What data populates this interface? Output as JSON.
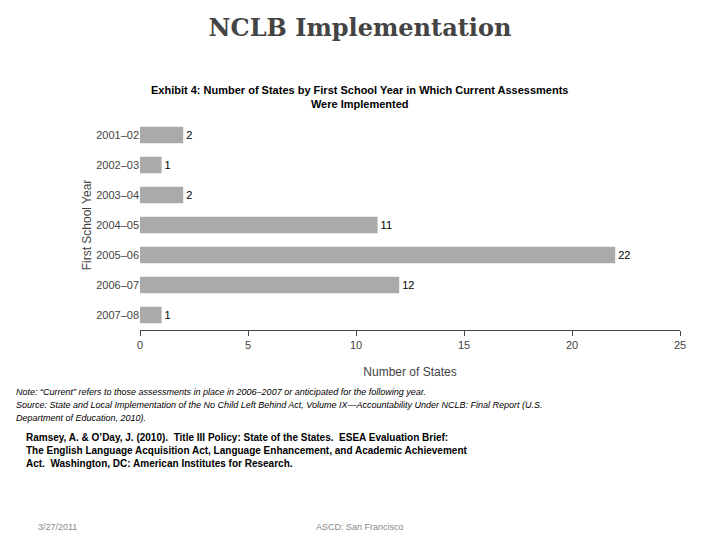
{
  "chart_data": {
    "type": "bar",
    "orientation": "horizontal",
    "title": "NCLB Implementation",
    "subtitle": "Exhibit 4: Number of States by First School Year in Which Current Assessments\nWere Implemented",
    "categories": [
      "2007–08",
      "2006–07",
      "2005–06",
      "2004–05",
      "2003–04",
      "2002–03",
      "2001–02"
    ],
    "values": [
      1,
      12,
      22,
      11,
      2,
      1,
      2
    ],
    "color": "#AAAAAA",
    "xlabel": "Number of States",
    "ylabel": "First School Year",
    "xlim": [
      0,
      25
    ],
    "xticks": [
      0,
      5,
      10,
      15,
      20,
      25
    ],
    "grid": false,
    "data_labels": true,
    "annotations": [
      "Note: “Current” refers to those assessments in place in 2006–2007 or anticipated for the following year.",
      "Source: State and Local Implementation of the No Child Left Behind Act, Volume IX—Accountability Under NCLB: Final Report (U.S.",
      "Department of Education, 2010).",
      "Ramsey, A. & O’Day, J. (2010).  Title III Policy: State of the States.  ESEA Evaluation Brief:\nThe English Language Acquisition Act, Language Enhancement, and Academic Achievement\nAct.  Washington, DC: American Institutes for Research.",
      "3/27/2011",
      "ASCD: San Francisco"
    ]
  }
}
